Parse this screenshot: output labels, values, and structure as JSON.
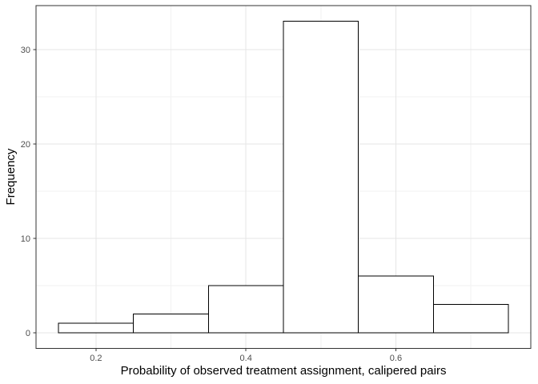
{
  "chart_data": {
    "type": "bar",
    "subtype": "histogram",
    "title": "",
    "xlabel": "Probability of observed treatment assignment, calipered pairs",
    "ylabel": "Frequency",
    "bin_edges": [
      0.15,
      0.25,
      0.35,
      0.45,
      0.55,
      0.65,
      0.75
    ],
    "counts": [
      1,
      2,
      5,
      33,
      6,
      3
    ],
    "xlim": [
      0.12,
      0.78
    ],
    "ylim": [
      -1.65,
      34.65
    ],
    "x_major_ticks": [
      0.2,
      0.4,
      0.6
    ],
    "x_tick_labels": [
      "0.2",
      "0.4",
      "0.6"
    ],
    "y_major_ticks": [
      0,
      10,
      20,
      30
    ],
    "y_tick_labels": [
      "0",
      "10",
      "20",
      "30"
    ],
    "x_minor_gridlines": [
      0.3,
      0.5,
      0.7
    ],
    "y_minor_gridlines": [
      5,
      15,
      25
    ],
    "grid": true,
    "legend": "none",
    "colors": {
      "background": "#ffffff",
      "panel_background": "#ffffff",
      "panel_border": "#333333",
      "grid_major": "#e5e5e5",
      "grid_minor": "#f2f2f2",
      "bar_fill": "#ffffff",
      "bar_stroke": "#000000",
      "tick_mark": "#333333",
      "tick_label": "#4d4d4d",
      "axis_title": "#000000"
    }
  }
}
